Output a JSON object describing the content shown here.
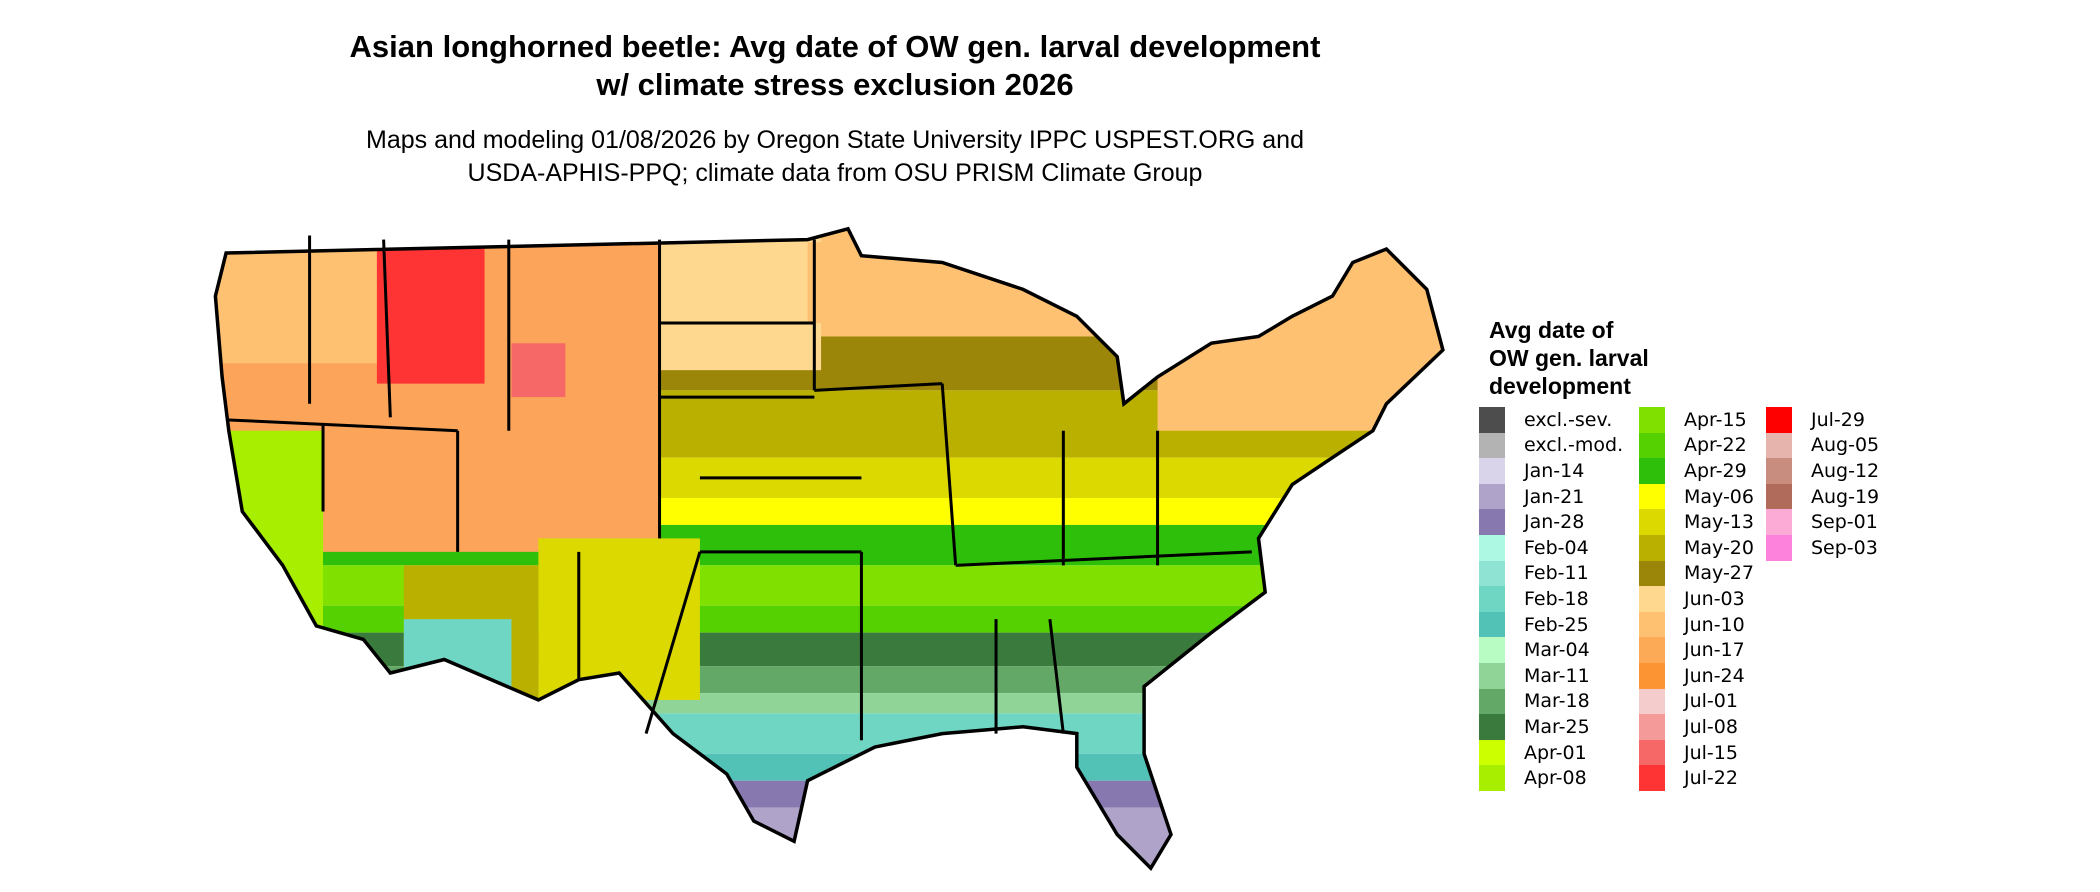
{
  "title": {
    "line1": "Asian longhorned beetle: Avg date of OW gen. larval development",
    "line2": "w/ climate stress exclusion 2026"
  },
  "subtitle": {
    "line1": "Maps and modeling 01/08/2026 by Oregon State University IPPC USPEST.ORG and",
    "line2": "USDA-APHIS-PPQ; climate data from OSU PRISM Climate Group"
  },
  "legend": {
    "title_lines": [
      "Avg date of",
      "OW gen. larval",
      "development"
    ],
    "columns": [
      [
        {
          "label": "excl.-sev.",
          "color": "#4d4d4d"
        },
        {
          "label": "excl.-mod.",
          "color": "#b3b3b3"
        },
        {
          "label": "Jan-14",
          "color": "#dad4ea"
        },
        {
          "label": "Jan-21",
          "color": "#afa3c9"
        },
        {
          "label": "Jan-28",
          "color": "#8778b0"
        },
        {
          "label": "Feb-04",
          "color": "#adf8e2"
        },
        {
          "label": "Feb-11",
          "color": "#8fe3d3"
        },
        {
          "label": "Feb-18",
          "color": "#70d6c4"
        },
        {
          "label": "Feb-25",
          "color": "#52c2b6"
        },
        {
          "label": "Mar-04",
          "color": "#b8fcc4"
        },
        {
          "label": "Mar-11",
          "color": "#90d497"
        },
        {
          "label": "Mar-18",
          "color": "#64a867"
        },
        {
          "label": "Mar-25",
          "color": "#3b7a3d"
        },
        {
          "label": "Apr-01",
          "color": "#ccff00"
        },
        {
          "label": "Apr-08",
          "color": "#a8ee00"
        }
      ],
      [
        {
          "label": "Apr-15",
          "color": "#80e000"
        },
        {
          "label": "Apr-22",
          "color": "#55d000"
        },
        {
          "label": "Apr-29",
          "color": "#2ebf0a"
        },
        {
          "label": "May-06",
          "color": "#ffff00"
        },
        {
          "label": "May-13",
          "color": "#dcd900"
        },
        {
          "label": "May-20",
          "color": "#bab000"
        },
        {
          "label": "May-27",
          "color": "#9b860a"
        },
        {
          "label": "Jun-03",
          "color": "#fed88e"
        },
        {
          "label": "Jun-10",
          "color": "#fec172"
        },
        {
          "label": "Jun-17",
          "color": "#fcaa55"
        },
        {
          "label": "Jun-24",
          "color": "#fc9433"
        },
        {
          "label": "Jul-01",
          "color": "#f4cccc"
        },
        {
          "label": "Jul-08",
          "color": "#f49a99"
        },
        {
          "label": "Jul-15",
          "color": "#f56867"
        },
        {
          "label": "Jul-22",
          "color": "#fe3434"
        }
      ],
      [
        {
          "label": "Jul-29",
          "color": "#ff0000"
        },
        {
          "label": "Aug-05",
          "color": "#e6b4ad"
        },
        {
          "label": "Aug-12",
          "color": "#c98d80"
        },
        {
          "label": "Aug-19",
          "color": "#b06b5a"
        },
        {
          "label": "Sep-01",
          "color": "#fcaad6"
        },
        {
          "label": "Sep-03",
          "color": "#fc82dc"
        }
      ]
    ]
  }
}
